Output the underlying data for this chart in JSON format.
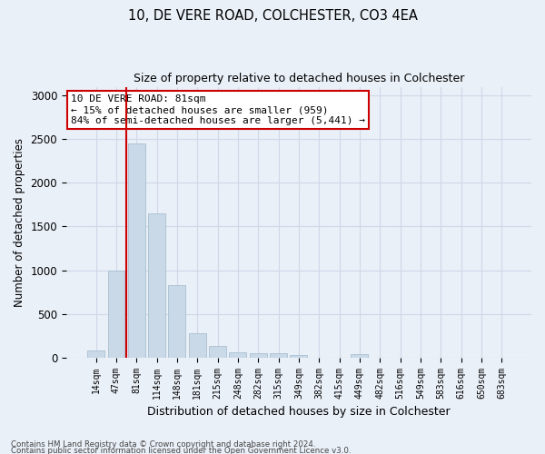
{
  "title1": "10, DE VERE ROAD, COLCHESTER, CO3 4EA",
  "title2": "Size of property relative to detached houses in Colchester",
  "xlabel": "Distribution of detached houses by size in Colchester",
  "ylabel": "Number of detached properties",
  "footer1": "Contains HM Land Registry data © Crown copyright and database right 2024.",
  "footer2": "Contains public sector information licensed under the Open Government Licence v3.0.",
  "annotation_title": "10 DE VERE ROAD: 81sqm",
  "annotation_line1": "← 15% of detached houses are smaller (959)",
  "annotation_line2": "84% of semi-detached houses are larger (5,441) →",
  "bar_labels": [
    "14sqm",
    "47sqm",
    "81sqm",
    "114sqm",
    "148sqm",
    "181sqm",
    "215sqm",
    "248sqm",
    "282sqm",
    "315sqm",
    "349sqm",
    "382sqm",
    "415sqm",
    "449sqm",
    "482sqm",
    "516sqm",
    "549sqm",
    "583sqm",
    "616sqm",
    "650sqm",
    "683sqm"
  ],
  "bar_values": [
    75,
    1000,
    2450,
    1650,
    830,
    280,
    130,
    55,
    45,
    45,
    30,
    0,
    0,
    35,
    0,
    0,
    0,
    0,
    0,
    0,
    0
  ],
  "bar_color": "#c9d9e8",
  "bar_edge_color": "#a8bfd0",
  "vline_x": 1.5,
  "vline_color": "#cc0000",
  "annotation_box_color": "#cc0000",
  "grid_color": "#d0d8e8",
  "bg_color": "#eaf0f8",
  "ylim": [
    0,
    3100
  ],
  "yticks": [
    0,
    500,
    1000,
    1500,
    2000,
    2500,
    3000
  ]
}
